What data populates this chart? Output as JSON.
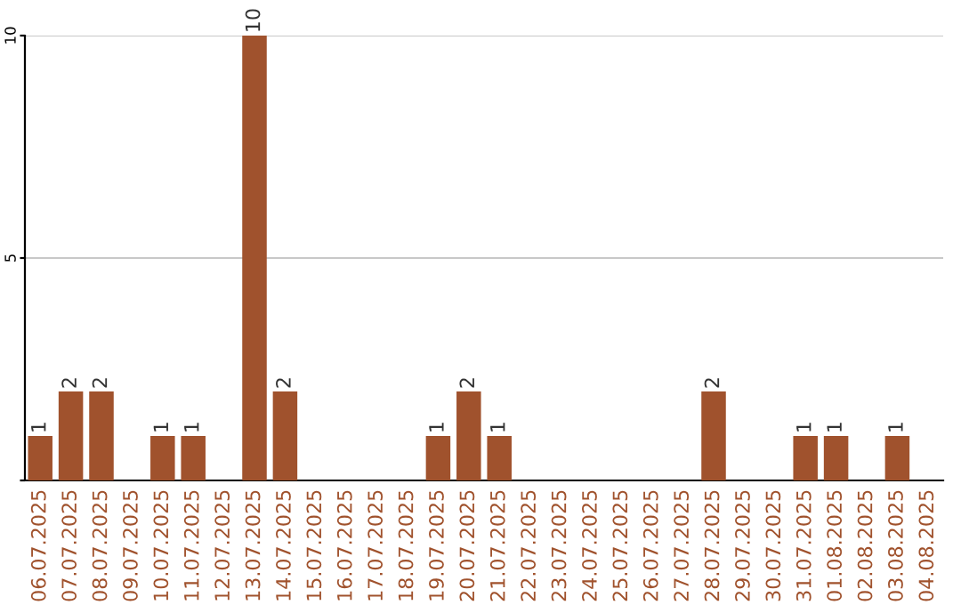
{
  "chart_data": {
    "type": "bar",
    "categories": [
      "06.07.2025",
      "07.07.2025",
      "08.07.2025",
      "09.07.2025",
      "10.07.2025",
      "11.07.2025",
      "12.07.2025",
      "13.07.2025",
      "14.07.2025",
      "15.07.2025",
      "16.07.2025",
      "17.07.2025",
      "18.07.2025",
      "19.07.2025",
      "20.07.2025",
      "21.07.2025",
      "22.07.2025",
      "23.07.2025",
      "24.07.2025",
      "25.07.2025",
      "26.07.2025",
      "27.07.2025",
      "28.07.2025",
      "29.07.2025",
      "30.07.2025",
      "31.07.2025",
      "01.08.2025",
      "02.08.2025",
      "03.08.2025",
      "04.08.2025"
    ],
    "values": [
      1,
      2,
      2,
      0,
      1,
      1,
      0,
      10,
      2,
      0,
      0,
      0,
      0,
      1,
      2,
      1,
      0,
      0,
      0,
      0,
      0,
      0,
      2,
      0,
      0,
      1,
      1,
      0,
      1,
      0
    ],
    "value_labels": [
      "1",
      "2",
      "2",
      null,
      "1",
      "1",
      null,
      "10",
      "2",
      null,
      null,
      null,
      null,
      "1",
      "2",
      "1",
      null,
      null,
      null,
      null,
      null,
      null,
      "2",
      null,
      null,
      "1",
      "1",
      null,
      "1",
      null
    ],
    "color": "#a0522d",
    "ylim": [
      0,
      10
    ],
    "yticks": [
      {
        "value": 0,
        "label": null
      },
      5,
      10
    ],
    "grid": "y"
  }
}
